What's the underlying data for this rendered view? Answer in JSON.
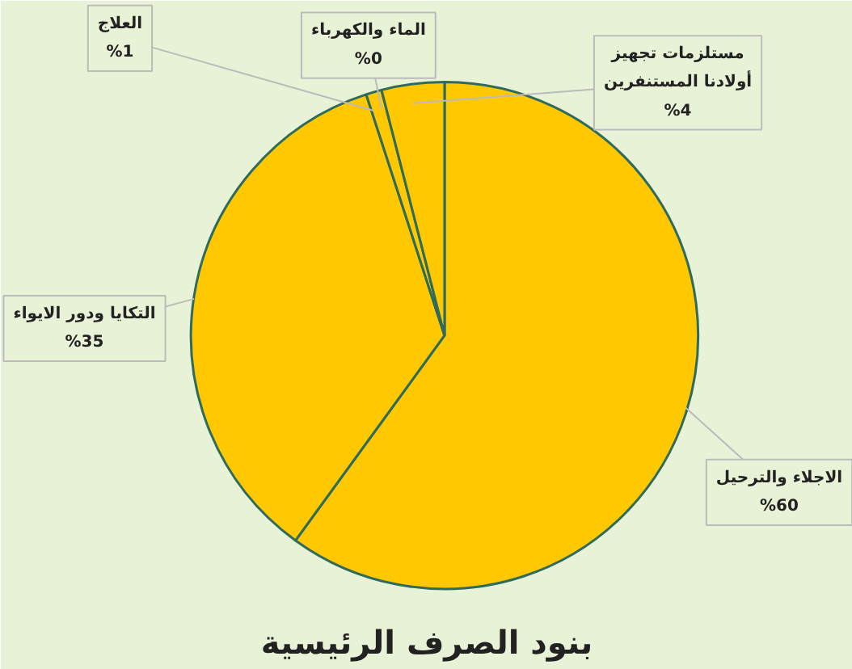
{
  "chart_data": {
    "type": "pie",
    "title": "بنود الصرف الرئيسية",
    "categories": [
      "الاجلاء والترحيل",
      "التكايا ودور الايواء",
      "العلاج",
      "الماء والكهرباء",
      "مستلزمات تجهيز أولادنا المستنفرين"
    ],
    "values": [
      60,
      35,
      1,
      0,
      4
    ],
    "colors": [
      "#ffc800",
      "#ffc800",
      "#ffc800",
      "#ffc800",
      "#ffc800"
    ],
    "value_labels": [
      "%60",
      "%35",
      "%1",
      "%0",
      "%4"
    ]
  }
}
